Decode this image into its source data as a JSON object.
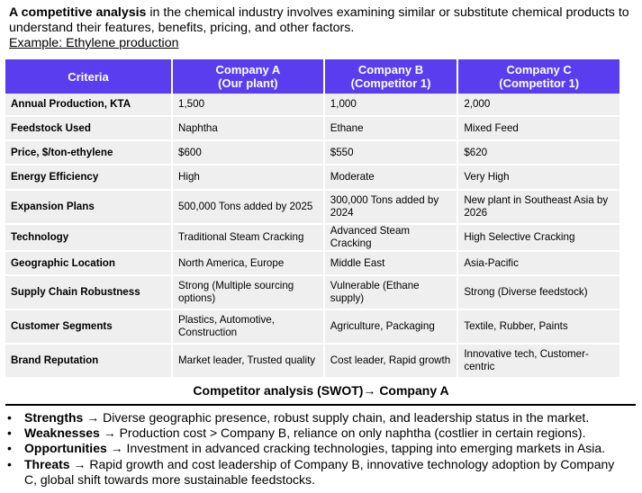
{
  "intro": {
    "lead_bold": "A competitive analysis",
    "text": " in the chemical industry involves examining similar or substitute chemical products to understand their features, benefits, pricing, and other factors.",
    "example": "Example: Ethylene production"
  },
  "table": {
    "headers": [
      "Criteria",
      "Company A\n(Our plant)",
      "Company B\n(Competitor 1)",
      "Company C\n(Competitor 1)"
    ],
    "rows": [
      {
        "criteria": "Annual Production, KTA",
        "a": "1,500",
        "b": "1,000",
        "c": "2,000"
      },
      {
        "criteria": "Feedstock Used",
        "a": "Naphtha",
        "b": "Ethane",
        "c": "Mixed Feed"
      },
      {
        "criteria": "Price, $/ton-ethylene",
        "a": "$600",
        "b": "$550",
        "c": "$620"
      },
      {
        "criteria": "Energy Efficiency",
        "a": "High",
        "b": "Moderate",
        "c": "Very High"
      },
      {
        "criteria": "Expansion Plans",
        "a": "500,000 Tons added by 2025",
        "b": "300,000 Tons added by 2024",
        "c": "New plant in Southeast Asia by 2026"
      },
      {
        "criteria": "Technology",
        "a": "Traditional Steam Cracking",
        "b": "Advanced Steam Cracking",
        "c": "High Selective Cracking"
      },
      {
        "criteria": "Geographic Location",
        "a": "North America, Europe",
        "b": "Middle East",
        "c": "Asia-Pacific"
      },
      {
        "criteria": "Supply Chain Robustness",
        "a": "Strong (Multiple sourcing options)",
        "b": "Vulnerable (Ethane supply)",
        "c": "Strong (Diverse feedstock)"
      },
      {
        "criteria": "Customer Segments",
        "a": "Plastics, Automotive, Construction",
        "b": "Agriculture, Packaging",
        "c": "Textile, Rubber, Paints"
      },
      {
        "criteria": "Brand Reputation",
        "a": "Market leader, Trusted quality",
        "b": "Cost leader, Rapid growth",
        "c": "Innovative tech, Customer-centric"
      }
    ]
  },
  "caption": "Competitor analysis (SWOT)→ Company A",
  "swot": [
    {
      "label": "Strengths",
      "text": " → Diverse geographic presence, robust supply chain, and leadership status in the market."
    },
    {
      "label": "Weaknesses",
      "text": " → Production cost > Company B, reliance on only naphtha (costlier in certain regions)."
    },
    {
      "label": "Opportunities",
      "text": " → Investment in advanced cracking technologies, tapping into emerging markets in Asia."
    },
    {
      "label": "Threats",
      "text": " → Rapid growth and cost leadership of Company B, innovative technology adoption by Company C, global shift towards more sustainable feedstocks."
    }
  ],
  "colors": {
    "header_bg": "#5b3df0",
    "cell_bg": "#efefef"
  }
}
